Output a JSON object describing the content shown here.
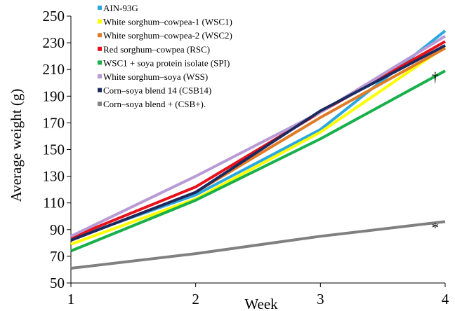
{
  "chart_data": {
    "type": "line",
    "xlabel": "Week",
    "ylabel": "Average  weight (g)",
    "x": [
      1,
      2,
      3,
      4
    ],
    "xlim": [
      1,
      4
    ],
    "ylim": [
      50,
      250
    ],
    "yticks": [
      50,
      70,
      90,
      110,
      130,
      150,
      170,
      190,
      210,
      230,
      250
    ],
    "xticks": [
      1,
      2,
      3,
      4
    ],
    "grid": false,
    "legend_position": "top-left",
    "series": [
      {
        "name": "AIN-93G",
        "color": "#29a8e0",
        "values": [
          83,
          116,
          165,
          239
        ]
      },
      {
        "name": "White sorghum–cowpea-1 (WSC1)",
        "color": "#ffff00",
        "values": [
          79,
          113,
          163,
          227
        ]
      },
      {
        "name": "White sorghum–cowpea-2 (WSC2)",
        "color": "#e07b28",
        "values": [
          82,
          118,
          174,
          226
        ]
      },
      {
        "name": "Red sorghum–cowpea (RSC)",
        "color": "#e8101a",
        "values": [
          84,
          122,
          178,
          231
        ]
      },
      {
        "name": "WSC1 + soya protein isolate (SPI)",
        "color": "#17b04a",
        "values": [
          74,
          112,
          158,
          209
        ]
      },
      {
        "name": "White sorghum–soya (WSS)",
        "color": "#b89ad4",
        "values": [
          85,
          130,
          178,
          235
        ]
      },
      {
        "name": "Corn–soya blend 14 (CSB14)",
        "color": "#1b2a5e",
        "values": [
          82,
          118,
          179,
          228
        ]
      },
      {
        "name": "Corn–soya blend + (CSB+).",
        "color": "#808080",
        "values": [
          61,
          72,
          85,
          96
        ]
      }
    ],
    "annotations": [
      {
        "text": "†",
        "x": 3.92,
        "y": 201
      },
      {
        "text": "*",
        "x": 3.92,
        "y": 88
      }
    ]
  }
}
